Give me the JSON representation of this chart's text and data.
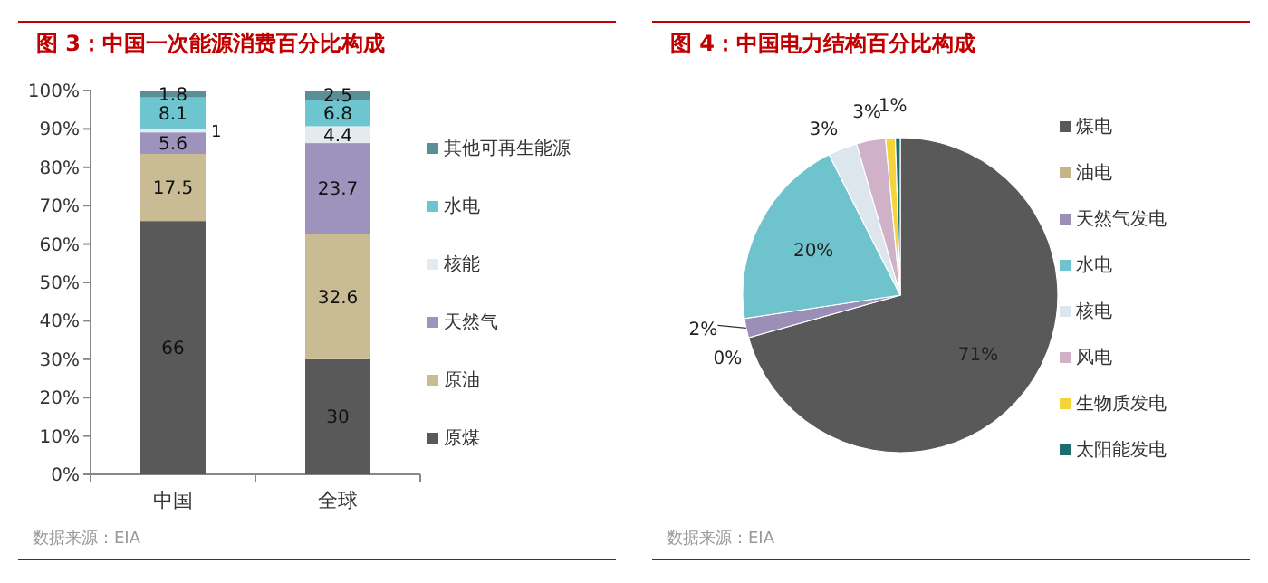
{
  "chart_data": [
    {
      "type": "bar",
      "title": "图 3：中国一次能源消费百分比构成",
      "stacked": true,
      "categories": [
        "中国",
        "全球"
      ],
      "series": [
        {
          "name": "原煤",
          "color": "#595959",
          "values": [
            66,
            30
          ]
        },
        {
          "name": "原油",
          "color": "#c9bc94",
          "values": [
            17.5,
            32.6
          ]
        },
        {
          "name": "天然气",
          "color": "#9d93bd",
          "values": [
            5.6,
            23.7
          ]
        },
        {
          "name": "核能",
          "color": "#e4ebf0",
          "values": [
            1,
            4.4
          ]
        },
        {
          "name": "水电",
          "color": "#6dc5d0",
          "values": [
            8.1,
            6.8
          ]
        },
        {
          "name": "其他可再生能源",
          "color": "#5a8f96",
          "values": [
            1.8,
            2.5
          ]
        }
      ],
      "ylim": [
        0,
        100
      ],
      "yticks": [
        {
          "value": 0,
          "label": "0%"
        },
        {
          "value": 10,
          "label": "10%"
        },
        {
          "value": 20,
          "label": "20%"
        },
        {
          "value": 30,
          "label": "30%"
        },
        {
          "value": 40,
          "label": "40%"
        },
        {
          "value": 50,
          "label": "50%"
        },
        {
          "value": 60,
          "label": "60%"
        },
        {
          "value": 70,
          "label": "70%"
        },
        {
          "value": 80,
          "label": "80%"
        },
        {
          "value": 90,
          "label": "90%"
        },
        {
          "value": 100,
          "label": "100%"
        }
      ],
      "data_labels": true,
      "legend": "right",
      "grid": false,
      "annotations": [
        "数据来源：EIA"
      ]
    },
    {
      "type": "pie",
      "title": "图 4：中国电力结构百分比构成",
      "categories": [
        "煤电",
        "油电",
        "天然气发电",
        "水电",
        "核电",
        "风电",
        "生物质发电",
        "太阳能发电"
      ],
      "values": [
        71,
        0,
        2,
        20,
        3,
        3,
        1,
        0.5
      ],
      "value_labels": [
        "71%",
        "0%",
        "2%",
        "20%",
        "3%",
        "3%",
        "1%",
        null
      ],
      "colors": [
        "#595959",
        "#c4b48a",
        "#9b8fb8",
        "#6ec3cc",
        "#dde6ec",
        "#cfb2c8",
        "#f5d33a",
        "#1f6e6e"
      ],
      "legend": "right",
      "annotations": [
        "数据来源：EIA"
      ]
    }
  ]
}
